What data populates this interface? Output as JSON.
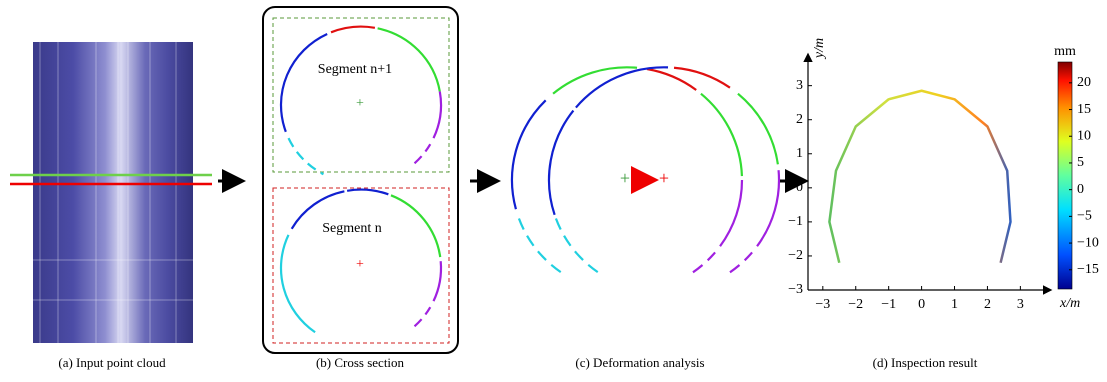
{
  "captions": {
    "a": "(a) Input point cloud",
    "b": "(b) Cross section",
    "c": "(c) Deformation analysis",
    "d": "(d) Inspection result"
  },
  "panel_b": {
    "upper_label": "Segment n+1",
    "lower_label": "Segment n"
  },
  "chart_data": {
    "type": "line",
    "xlabel": "x/m",
    "ylabel": "y/m",
    "xlim": [
      -3.45,
      3.9
    ],
    "ylim": [
      -3,
      3.9
    ],
    "xticks": [
      {
        "value": -3,
        "label": "−3"
      },
      {
        "value": -2,
        "label": "−2"
      },
      {
        "value": -1,
        "label": "−1"
      },
      0,
      1,
      2,
      3
    ],
    "yticks": [
      {
        "value": -3,
        "label": "−3"
      },
      {
        "value": -2,
        "label": "−2"
      },
      {
        "value": -1,
        "label": "−1"
      },
      0,
      1,
      2,
      3
    ],
    "series": [
      {
        "x": [
          -2.5,
          -2.8,
          -2.6,
          -2.0,
          -1.0,
          0,
          1.0,
          2.0,
          2.6,
          2.7,
          2.4
        ],
        "values": [
          -2.2,
          -1.0,
          0.5,
          1.8,
          2.6,
          2.85,
          2.6,
          1.8,
          0.5,
          -1.0,
          -2.2
        ]
      }
    ],
    "colorbar": {
      "label": "mm",
      "lim": [
        -18.6,
        23.9
      ],
      "ticks": [
        20,
        15,
        10,
        5,
        0,
        {
          "value": -5,
          "label": "−5"
        },
        {
          "value": -10,
          "label": "−10"
        },
        {
          "value": -15,
          "label": "−15"
        }
      ]
    }
  }
}
